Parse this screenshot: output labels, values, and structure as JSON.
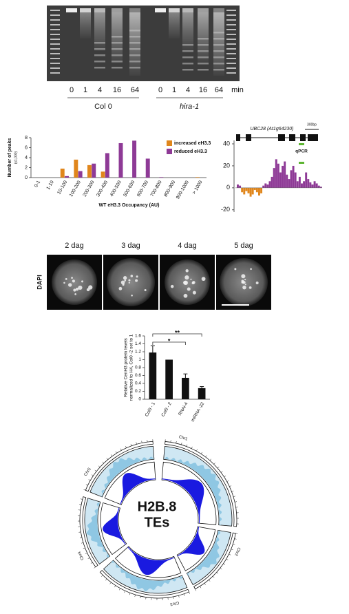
{
  "gel": {
    "lanes": [
      "0",
      "1",
      "4",
      "16",
      "64",
      "0",
      "1",
      "4",
      "16",
      "64"
    ],
    "unit": "min",
    "groups": [
      "Col 0",
      "hira-1"
    ]
  },
  "chart_data": [
    {
      "type": "bar",
      "ylabel": "Number of peaks",
      "ylabel_unit": "(x1,000)",
      "xlabel": "WT eH3.3 Occupancy (AU)",
      "categories": [
        "0-1",
        "1-10",
        "10-100",
        "100-200",
        "200-300",
        "300-400",
        "400-500",
        "500-600",
        "600-700",
        "700-800",
        "800-900",
        "900-1000",
        "> 1000"
      ],
      "series": [
        {
          "name": "increased eH3.3",
          "color": "#e0861c",
          "values": [
            0,
            0,
            1.8,
            3.6,
            2.5,
            1.2,
            0,
            0,
            0,
            0,
            0,
            0,
            0.1
          ]
        },
        {
          "name": "reduced eH3.3",
          "color": "#8e3a96",
          "values": [
            0,
            0,
            0.3,
            1.3,
            2.8,
            4.9,
            6.9,
            7.4,
            3.8,
            0.1,
            0,
            0,
            0
          ]
        }
      ],
      "ylim": [
        0,
        8
      ],
      "yticks": [
        0,
        2,
        4,
        6,
        8
      ],
      "legend": "top-right"
    },
    {
      "type": "track",
      "gene": "UBC28 (At1g64230)",
      "scale_label": "300bp",
      "primer_label": "qPCR",
      "positive_color": "#8e3a96",
      "negative_color": "#e0861c",
      "values": [
        3,
        2,
        -4,
        -6,
        -3,
        -5,
        -8,
        -6,
        -2,
        -4,
        -7,
        -5,
        2,
        4,
        3,
        6,
        10,
        18,
        26,
        22,
        14,
        20,
        24,
        12,
        8,
        16,
        20,
        14,
        6,
        10,
        4,
        6,
        14,
        8,
        5,
        3,
        6,
        4,
        2,
        1
      ],
      "ylim": [
        -22,
        40
      ],
      "yticks": [
        40,
        20,
        0,
        -20
      ]
    },
    {
      "type": "bar",
      "ylabel": [
        "Relative CenH3 protein levels",
        "normalized to H4, Col0 -2 set to 1"
      ],
      "categories": [
        "Col0 - 1",
        "Col0 - 2",
        "RNAi-4",
        "miRNA -22"
      ],
      "values": [
        1.18,
        1.0,
        0.54,
        0.28
      ],
      "errors": [
        0.17,
        null,
        0.1,
        0.04
      ],
      "color": "#111111",
      "ylim": [
        0,
        1.6
      ],
      "yticks": [
        0,
        0.2,
        0.4,
        0.6,
        0.8,
        1,
        1.2,
        1.4,
        1.6
      ],
      "annotations": [
        "**",
        "*"
      ]
    }
  ],
  "dapi": {
    "label": "DAPI",
    "panels": [
      "2 dag",
      "3 dag",
      "4 dag",
      "5 dag"
    ]
  },
  "circos": {
    "labels": [
      "H2B.8",
      "TEs"
    ],
    "chromosomes": [
      "Chr1",
      "Chr2",
      "Chr3",
      "Chr4",
      "Chr5"
    ]
  }
}
